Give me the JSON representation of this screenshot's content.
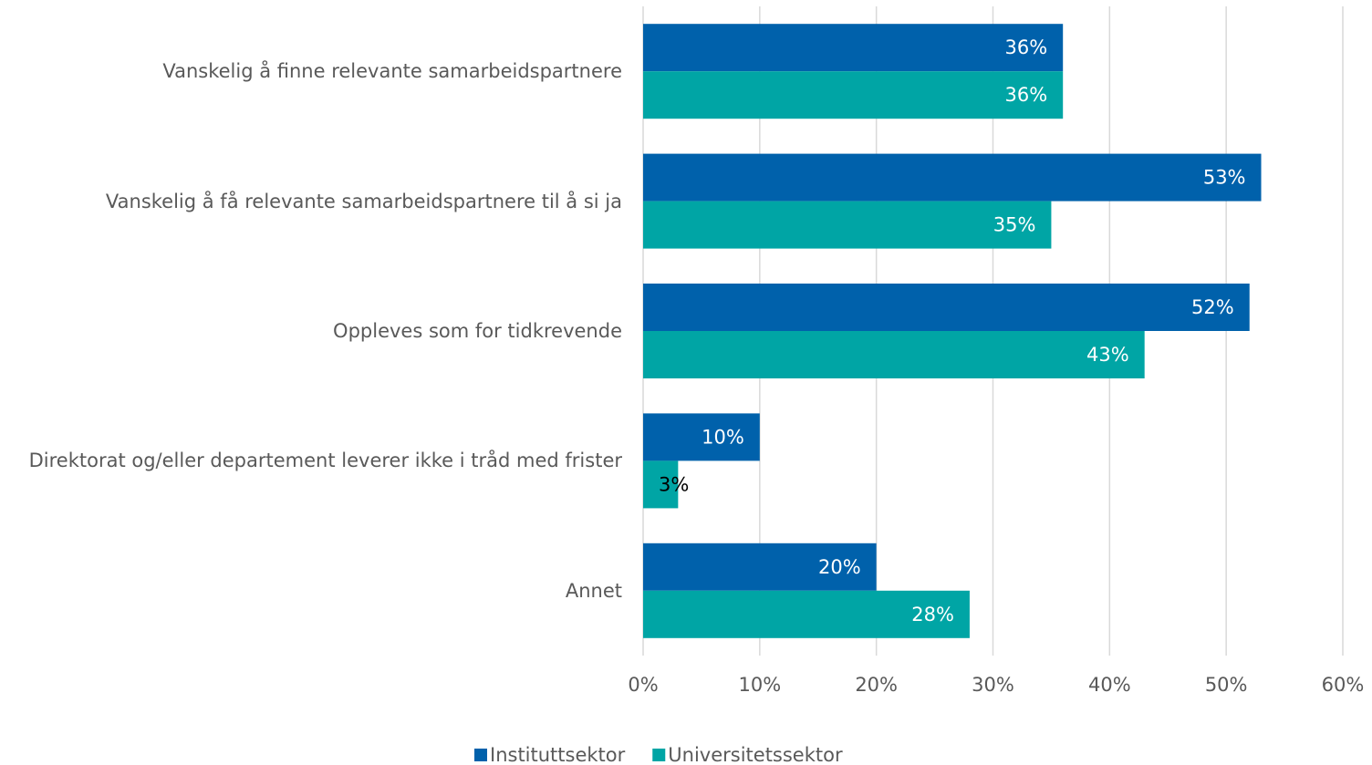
{
  "chart_data": {
    "type": "bar",
    "orientation": "horizontal",
    "categories": [
      "Vanskelig å finne relevante samarbeidspartnere",
      "Vanskelig å få relevante samarbeidspartnere til å si ja",
      "Oppleves som for tidkrevende",
      "Direktorat og/eller departement leverer ikke i tråd med frister",
      "Annet"
    ],
    "series": [
      {
        "name": "Instituttsektor",
        "color": "#0061ab",
        "values": [
          36,
          53,
          52,
          10,
          20
        ],
        "value_labels": [
          "36%",
          "53%",
          "52%",
          "10%",
          "20%"
        ]
      },
      {
        "name": "Universitetssektor",
        "color": "#00a5a5",
        "values": [
          36,
          35,
          43,
          3,
          28
        ],
        "value_labels": [
          "36%",
          "35%",
          "43%",
          "3%",
          "28%"
        ]
      }
    ],
    "xlim": [
      0,
      60
    ],
    "xticks": [
      {
        "value": 0,
        "label": "0%"
      },
      {
        "value": 10,
        "label": "10%"
      },
      {
        "value": 20,
        "label": "20%"
      },
      {
        "value": 30,
        "label": "30%"
      },
      {
        "value": 40,
        "label": "40%"
      },
      {
        "value": 50,
        "label": "50%"
      },
      {
        "value": 60,
        "label": "60%"
      }
    ],
    "grid": true,
    "legend": "bottom"
  }
}
